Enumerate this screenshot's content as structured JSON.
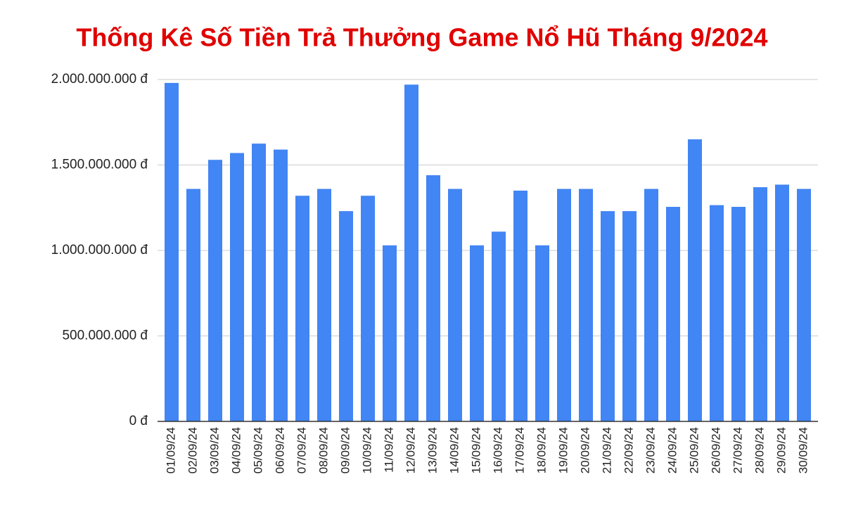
{
  "chart_data": {
    "type": "bar",
    "title": "Thống Kê Số Tiền Trả Thưởng Game Nổ Hũ Tháng 9/2024",
    "categories": [
      "01/09/24",
      "02/09/24",
      "03/09/24",
      "04/09/24",
      "05/09/24",
      "06/09/24",
      "07/09/24",
      "08/09/24",
      "09/09/24",
      "10/09/24",
      "11/09/24",
      "12/09/24",
      "13/09/24",
      "14/09/24",
      "15/09/24",
      "16/09/24",
      "17/09/24",
      "18/09/24",
      "19/09/24",
      "20/09/24",
      "21/09/24",
      "22/09/24",
      "23/09/24",
      "24/09/24",
      "25/09/24",
      "26/09/24",
      "27/09/24",
      "28/09/24",
      "29/09/24",
      "30/09/24"
    ],
    "values": [
      1980000000,
      1360000000,
      1530000000,
      1570000000,
      1625000000,
      1590000000,
      1320000000,
      1360000000,
      1230000000,
      1320000000,
      1030000000,
      1970000000,
      1440000000,
      1360000000,
      1030000000,
      1110000000,
      1350000000,
      1030000000,
      1360000000,
      1360000000,
      1230000000,
      1230000000,
      1360000000,
      1255000000,
      1650000000,
      1265000000,
      1255000000,
      1370000000,
      1385000000,
      1360000000
    ],
    "color": "#4285f4",
    "ylim": [
      0,
      2000000000
    ],
    "yticks": [
      {
        "value": 0,
        "label": "0 đ"
      },
      {
        "value": 500000000,
        "label": "500.000.000 đ"
      },
      {
        "value": 1000000000,
        "label": "1.000.000.000 đ"
      },
      {
        "value": 1500000000,
        "label": "1.500.000.000 đ"
      },
      {
        "value": 2000000000,
        "label": "2.000.000.000 đ"
      }
    ],
    "grid": true
  }
}
